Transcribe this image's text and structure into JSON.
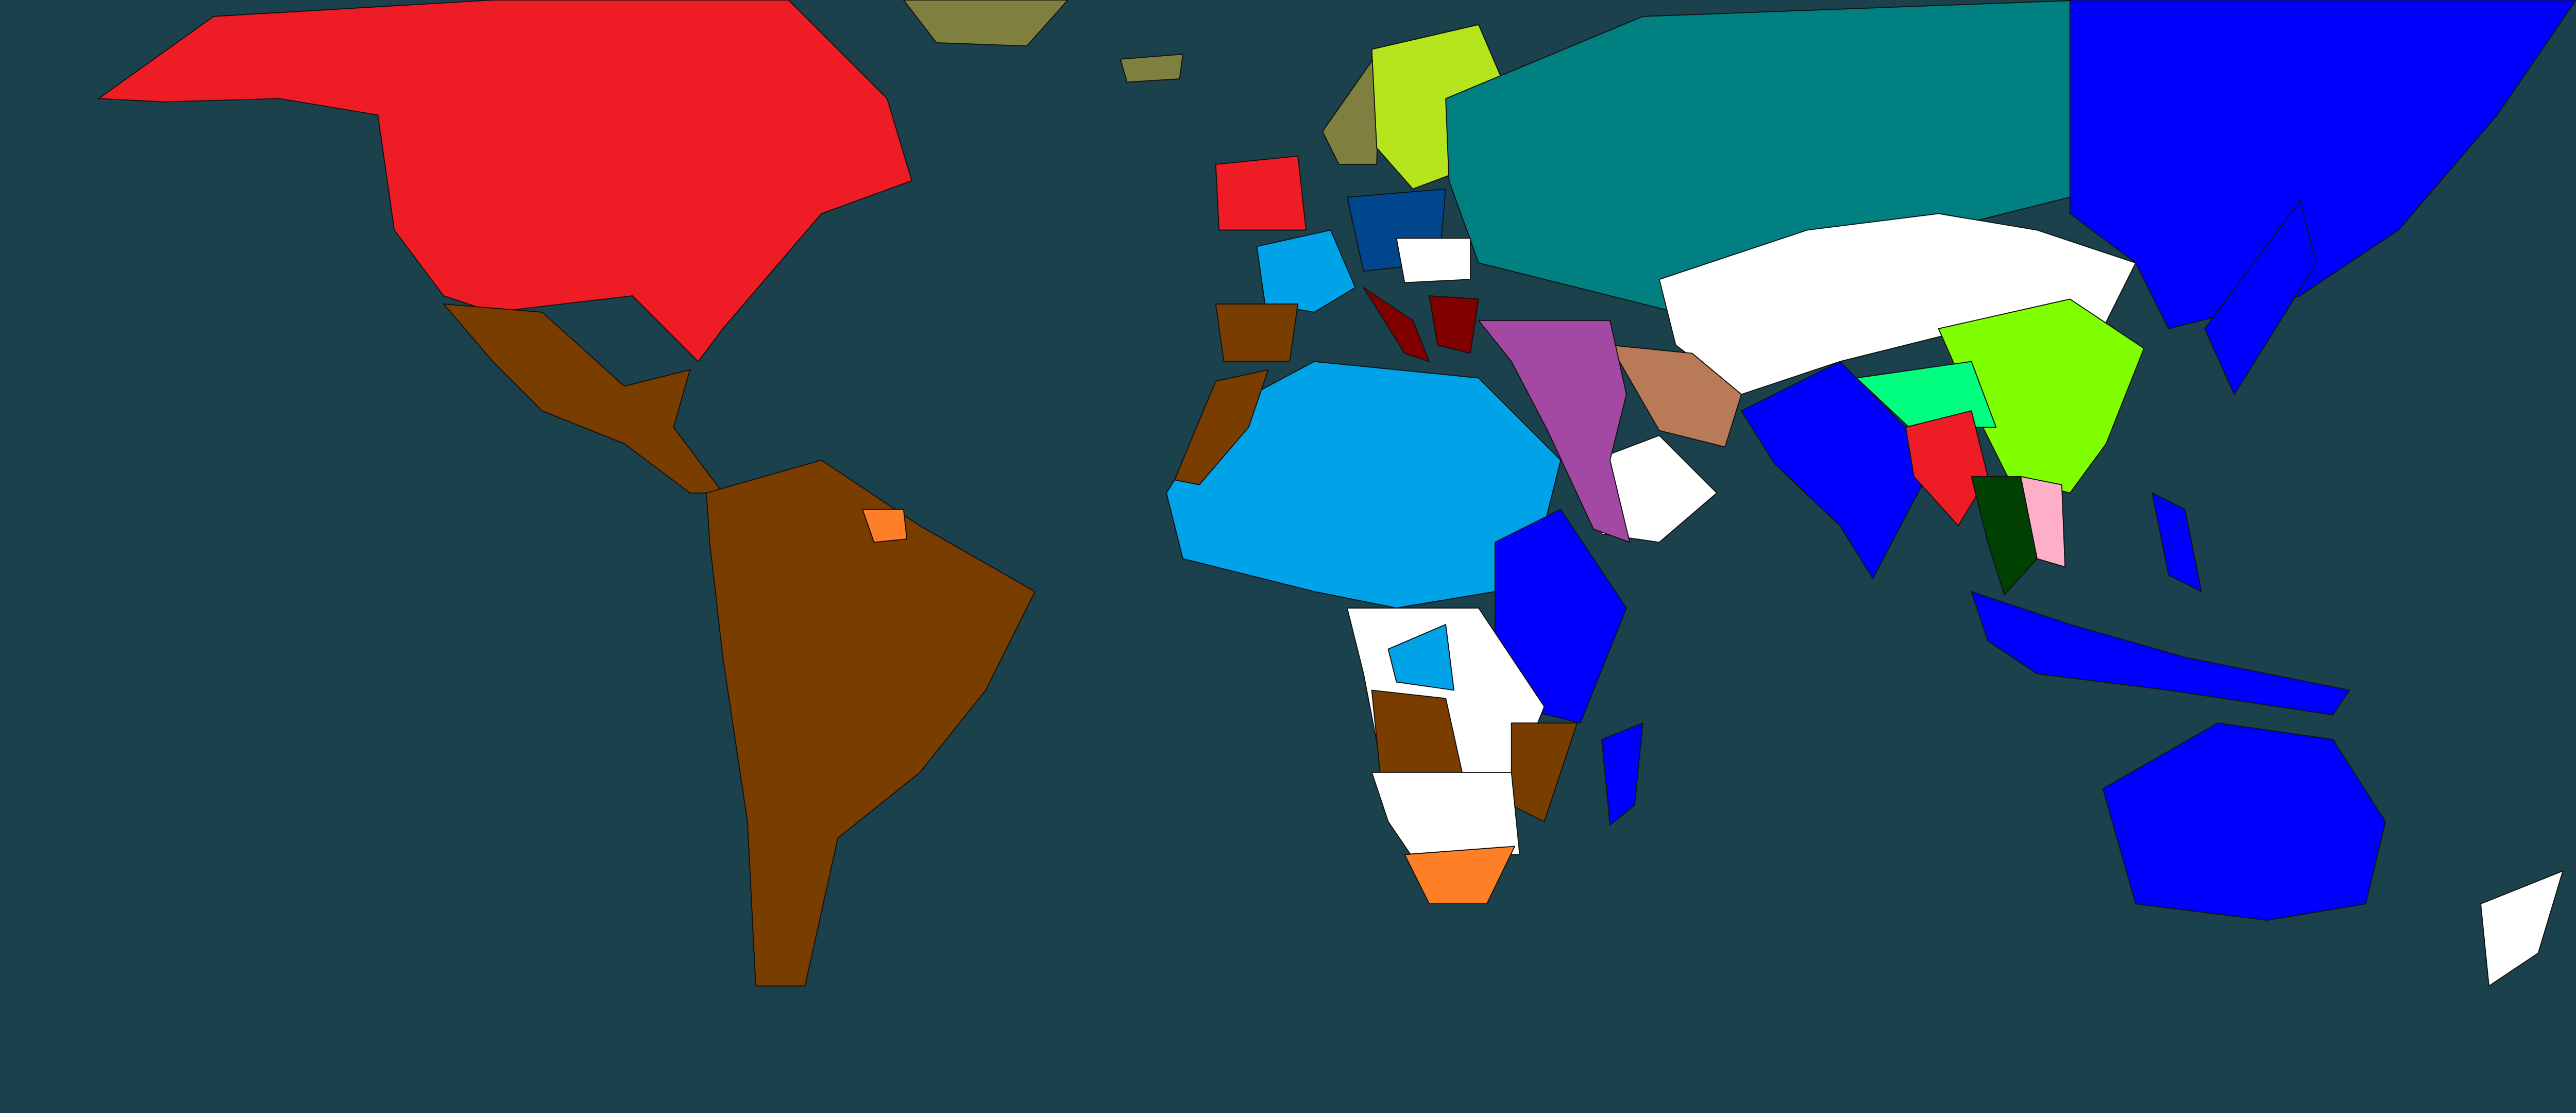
{
  "map": {
    "colors": {
      "ocean": "#1b414c",
      "red": "#ee1c25",
      "brown": "#7a3d00",
      "olive": "#7f7f3f",
      "lime": "#b5e61d",
      "teal": "#008080",
      "blue": "#0000ff",
      "white": "#ffffff",
      "light_green": "#80ff00",
      "spring_green": "#00ff80",
      "dark_green": "#004000",
      "pink": "#ffaec9",
      "tan": "#b97a57",
      "purple": "#a349a4",
      "light_blue": "#00a2e8",
      "navy": "#00468c",
      "dark_red": "#800000",
      "orange": "#ff7f27"
    }
  }
}
